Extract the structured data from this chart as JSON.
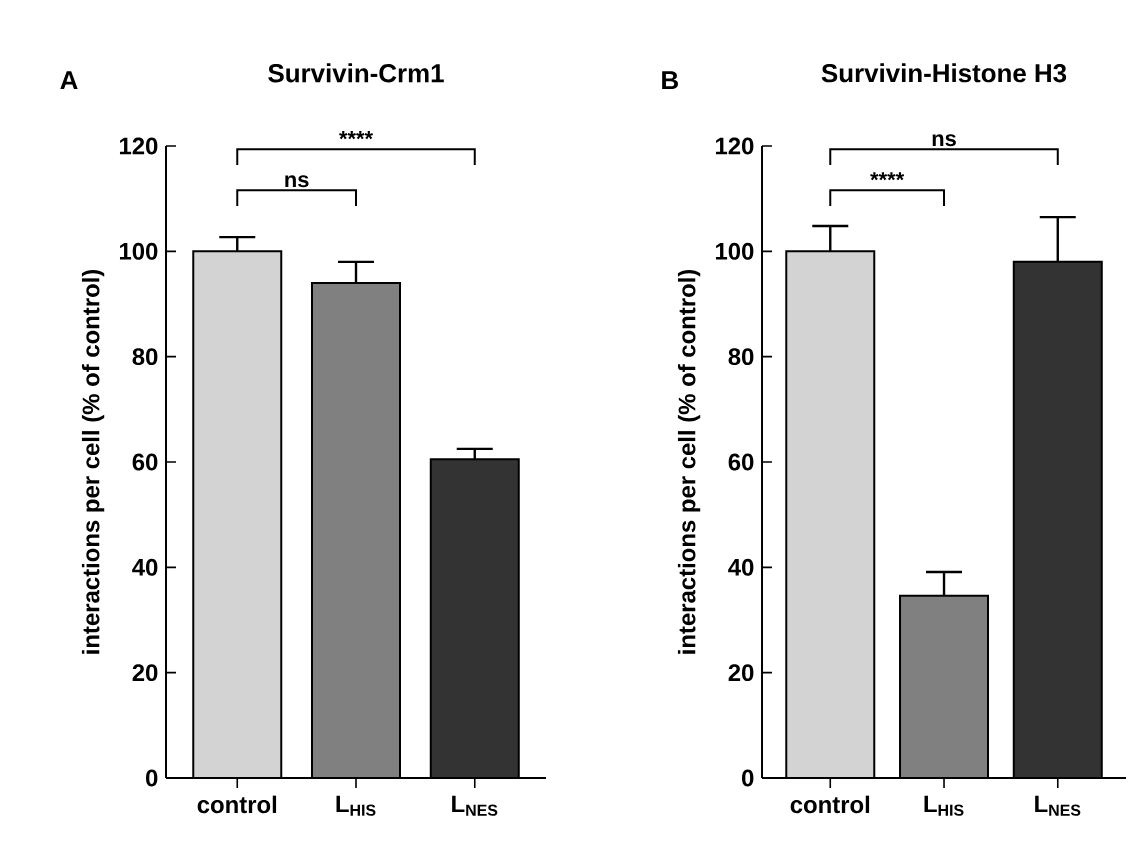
{
  "chart_data": [
    {
      "type": "bar",
      "title": "Survivin-Crm1",
      "ylabel": "interactions per cell (% of  control)",
      "categories": [
        "control",
        "L$_{HIS}$",
        "L$_{NES}$"
      ],
      "values": [
        100,
        94,
        60.5
      ],
      "errors": [
        2.7,
        4,
        2
      ],
      "colors": [
        "#d3d3d3",
        "#808080",
        "#333333"
      ],
      "ylim": [
        0,
        120
      ],
      "yticks": [
        0,
        20,
        40,
        60,
        80,
        100,
        120
      ],
      "annotations": [
        "A",
        "ns",
        "****"
      ]
    },
    {
      "type": "bar",
      "title": "Survivin-Histone H3",
      "ylabel": "interactions per cell (% of  control)",
      "categories": [
        "control",
        "L$_{HIS}$",
        "L$_{NES}$"
      ],
      "values": [
        100,
        34.6,
        98
      ],
      "errors": [
        4.8,
        4.5,
        8.5
      ],
      "colors": [
        "#d3d3d3",
        "#808080",
        "#333333"
      ],
      "ylim": [
        0,
        120
      ],
      "yticks": [
        0,
        20,
        40,
        60,
        80,
        100,
        120
      ],
      "annotations": [
        "B",
        "****",
        "ns"
      ]
    }
  ]
}
